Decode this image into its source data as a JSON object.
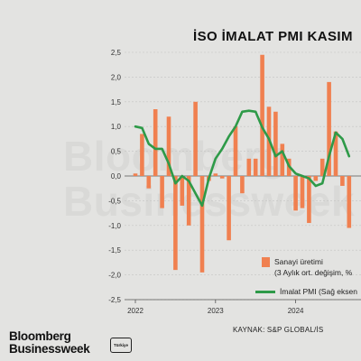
{
  "title": "İSO İMALAT PMI KASIM",
  "watermark": [
    "Bloomberg",
    "Businessweek"
  ],
  "chart_data": {
    "type": "bar+line",
    "title": "İSO İMALAT PMI KASIM",
    "ylim": [
      -2.5,
      2.5
    ],
    "yticks": [
      "2,5",
      "2,0",
      "1,5",
      "1,0",
      "0,5",
      "0,0",
      "-0,5",
      "-1,0",
      "-1,5",
      "-2,0",
      "-2,5"
    ],
    "ytick_values": [
      2.5,
      2.0,
      1.5,
      1.0,
      0.5,
      0.0,
      -0.5,
      -1.0,
      -1.5,
      -2.0,
      -2.5
    ],
    "xticks": [
      {
        "label": "2022",
        "index": 0
      },
      {
        "label": "2023",
        "index": 12
      },
      {
        "label": "2024",
        "index": 24
      }
    ],
    "series": [
      {
        "name": "Sanayi üretimi",
        "name_sub": "(3 Aylık ort. değişim, %",
        "type": "bar",
        "color": "#f08050",
        "values": [
          0.05,
          0.85,
          -0.25,
          1.35,
          -0.65,
          1.2,
          -1.9,
          -0.6,
          -1.0,
          1.5,
          -1.95,
          -0.1,
          0.05,
          -0.05,
          -1.3,
          1.0,
          -0.35,
          0.35,
          0.35,
          2.45,
          1.4,
          1.3,
          0.65,
          0.35,
          -0.7,
          -0.65,
          -0.95,
          -0.1,
          0.35,
          1.9,
          0.9,
          -0.2,
          -1.05
        ]
      },
      {
        "name": "İmalat PMI (Sağ eksen",
        "type": "line",
        "color": "#2e9a48",
        "values": [
          1.0,
          0.97,
          0.65,
          0.55,
          0.55,
          0.25,
          -0.15,
          0.0,
          -0.1,
          -0.35,
          -0.6,
          -0.05,
          0.35,
          0.55,
          0.8,
          1.0,
          1.3,
          1.32,
          1.3,
          0.98,
          0.75,
          0.4,
          0.5,
          0.2,
          0.05,
          0.0,
          -0.05,
          -0.2,
          -0.15,
          0.4,
          0.88,
          0.75,
          0.4
        ]
      }
    ]
  },
  "source": "KAYNAK: S&P GLOBAL/İS",
  "logo": {
    "line1": "Bloomberg",
    "line2": "Businessweek",
    "badge": "Türkiye"
  }
}
